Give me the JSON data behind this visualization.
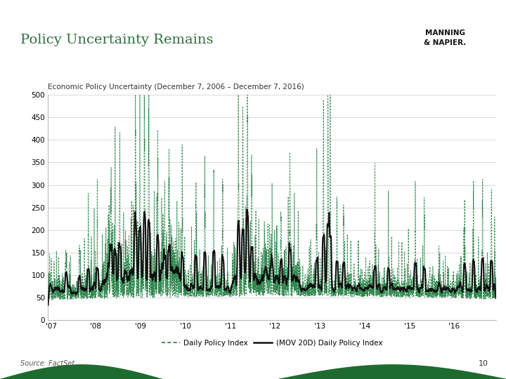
{
  "title": "Policy Uncertainty Remains",
  "subtitle": "Economic Policy Uncertainty (December 7, 2006 – December 7, 2016)",
  "source": "Source: FactSet.",
  "page_number": "10",
  "legend_dashed_label": "Daily Policy Index",
  "legend_solid_label": "(MOV 20D) Daily Policy Index",
  "dashed_color": "#1a7a3c",
  "solid_color": "#111111",
  "background_color": "#ffffff",
  "title_color": "#2d6e3e",
  "ylim": [
    0,
    500
  ],
  "yticks": [
    0,
    50,
    100,
    150,
    200,
    250,
    300,
    350,
    400,
    450,
    500
  ],
  "xtick_labels": [
    "'07",
    "'08",
    "'09",
    "'10",
    "'11",
    "'12",
    "'13",
    "'14",
    "'15",
    "'16"
  ],
  "plot_bg": "#ffffff",
  "grid_color": "#cccccc",
  "wave_color": "#1e6b30"
}
